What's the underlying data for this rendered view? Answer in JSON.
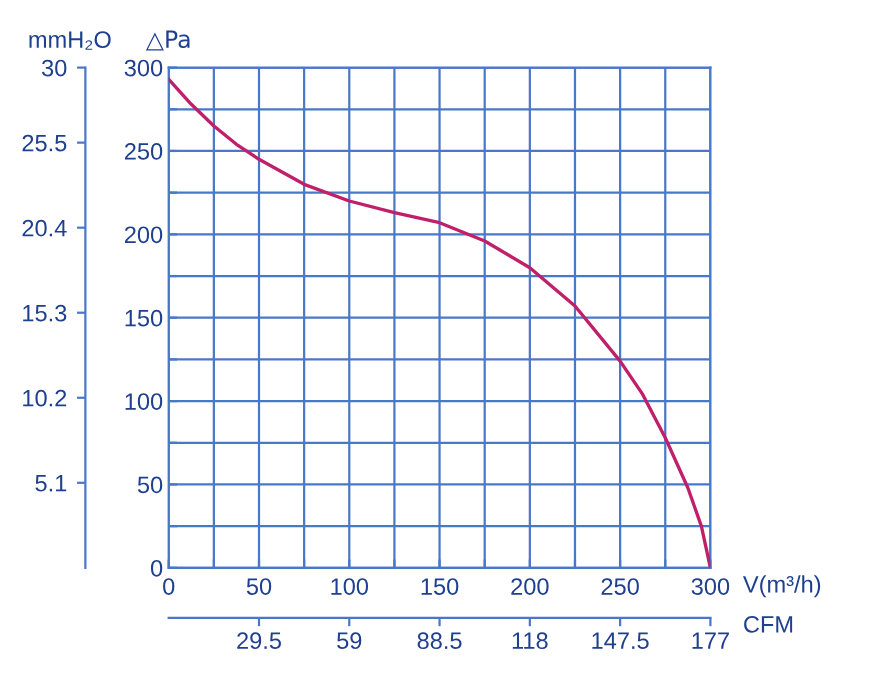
{
  "chart_data": {
    "type": "line",
    "x": [
      0,
      12.5,
      25,
      37.5,
      50,
      75,
      100,
      125,
      150,
      175,
      200,
      225,
      250,
      262.5,
      275,
      287.5,
      295,
      300
    ],
    "series": [
      {
        "color": "#c0206a",
        "values": [
          293,
          278,
          265,
          254,
          245,
          230,
          220,
          213,
          207,
          196,
          180,
          157,
          124,
          104,
          78,
          48,
          25,
          0
        ]
      }
    ],
    "xlabel": "V(m³/h)",
    "ylabel": "△Pa",
    "y2label": "mmH₂O",
    "x2label": "CFM",
    "xlim": [
      0,
      300
    ],
    "ylim": [
      0,
      300
    ],
    "y2lim": [
      0,
      30
    ],
    "x2lim": [
      0,
      177
    ],
    "xticks": [
      0,
      {
        "value": 25,
        "label": null
      },
      50,
      {
        "value": 75,
        "label": null
      },
      100,
      {
        "value": 125,
        "label": null
      },
      150,
      {
        "value": 175,
        "label": null
      },
      200,
      {
        "value": 225,
        "label": null
      },
      250,
      {
        "value": 275,
        "label": null
      },
      300
    ],
    "yticks": [
      0,
      {
        "value": 25,
        "label": null
      },
      50,
      {
        "value": 75,
        "label": null
      },
      100,
      {
        "value": 125,
        "label": null
      },
      150,
      {
        "value": 175,
        "label": null
      },
      200,
      {
        "value": 225,
        "label": null
      },
      250,
      {
        "value": 275,
        "label": null
      },
      300
    ],
    "y2ticks": [
      5.1,
      10.2,
      15.3,
      20.4,
      25.5,
      30
    ],
    "x2ticks": [
      29.5,
      59,
      88.5,
      118,
      147.5,
      177
    ],
    "grid": true,
    "marker": "none",
    "line_style": "solid"
  }
}
